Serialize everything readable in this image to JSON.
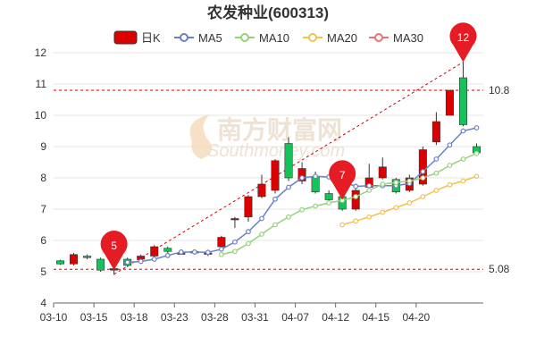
{
  "title": "农发种业(600313)",
  "watermark": "南方财富网 Southmoney.com",
  "chart_data": {
    "type": "candlestick",
    "title": "农发种业(600313)",
    "legend": [
      "日K",
      "MA5",
      "MA10",
      "MA20",
      "MA30"
    ],
    "legend_placement": "top",
    "colors": {
      "up": "#dd0000",
      "down": "#14c35a",
      "MA5": "#6a7fc9",
      "MA10": "#95d27a",
      "MA20": "#f2c14e",
      "MA30": "#f07070",
      "marker": "#e51c23"
    },
    "x_tick_labels": [
      "03-10",
      "03-15",
      "03-18",
      "03-23",
      "03-28",
      "03-31",
      "04-07",
      "04-12",
      "04-15",
      "04-20"
    ],
    "y_range": [
      4,
      12
    ],
    "y_ticks": [
      4,
      5,
      6,
      7,
      8,
      9,
      10,
      11,
      12
    ],
    "candles": [
      {
        "open": 5.35,
        "close": 5.25,
        "high": 5.38,
        "low": 5.22
      },
      {
        "open": 5.25,
        "close": 5.55,
        "high": 5.6,
        "low": 5.2
      },
      {
        "open": 5.5,
        "close": 5.45,
        "high": 5.55,
        "low": 5.4
      },
      {
        "open": 5.4,
        "close": 5.05,
        "high": 5.45,
        "low": 5.0
      },
      {
        "open": 5.05,
        "close": 5.1,
        "high": 5.15,
        "low": 4.9
      },
      {
        "open": 5.4,
        "close": 5.2,
        "high": 5.45,
        "low": 5.15
      },
      {
        "open": 5.4,
        "close": 5.5,
        "high": 5.55,
        "low": 5.35
      },
      {
        "open": 5.5,
        "close": 5.8,
        "high": 5.85,
        "low": 5.45
      },
      {
        "open": 5.75,
        "close": 5.65,
        "high": 5.8,
        "low": 5.6
      },
      {
        "open": 5.6,
        "close": 5.6,
        "high": 5.65,
        "low": 5.55
      },
      {
        "open": 5.65,
        "close": 5.6,
        "high": 5.7,
        "low": 5.55
      },
      {
        "open": 5.6,
        "close": 5.6,
        "high": 5.65,
        "low": 5.5
      },
      {
        "open": 5.8,
        "close": 6.1,
        "high": 6.15,
        "low": 5.75
      },
      {
        "open": 6.7,
        "close": 6.7,
        "high": 6.75,
        "low": 6.4
      },
      {
        "open": 6.75,
        "close": 7.4,
        "high": 7.45,
        "low": 6.6
      },
      {
        "open": 7.4,
        "close": 7.8,
        "high": 8.1,
        "low": 7.35
      },
      {
        "open": 7.6,
        "close": 8.55,
        "high": 8.6,
        "low": 7.5
      },
      {
        "open": 9.1,
        "close": 8.0,
        "high": 9.3,
        "low": 7.9
      },
      {
        "open": 7.9,
        "close": 8.3,
        "high": 8.5,
        "low": 7.8
      },
      {
        "open": 8.05,
        "close": 7.55,
        "high": 8.2,
        "low": 7.5
      },
      {
        "open": 7.5,
        "close": 7.3,
        "high": 7.6,
        "low": 7.2
      },
      {
        "open": 7.4,
        "close": 7.0,
        "high": 7.5,
        "low": 6.95
      },
      {
        "open": 7.0,
        "close": 7.6,
        "high": 7.8,
        "low": 6.95
      },
      {
        "open": 7.7,
        "close": 8.0,
        "high": 8.45,
        "low": 7.6
      },
      {
        "open": 8.0,
        "close": 8.35,
        "high": 8.65,
        "low": 7.95
      },
      {
        "open": 7.95,
        "close": 7.55,
        "high": 8.0,
        "low": 7.5
      },
      {
        "open": 7.6,
        "close": 8.0,
        "high": 8.1,
        "low": 7.55
      },
      {
        "open": 7.8,
        "close": 8.9,
        "high": 9.0,
        "low": 7.75
      },
      {
        "open": 9.15,
        "close": 9.8,
        "high": 10.1,
        "low": 9.05
      },
      {
        "open": 10.0,
        "close": 10.8,
        "high": 10.8,
        "low": 10.0
      },
      {
        "open": 11.2,
        "close": 9.7,
        "high": 11.7,
        "low": 9.65
      },
      {
        "open": 9.0,
        "close": 8.8,
        "high": 9.1,
        "low": 8.7
      }
    ],
    "ma5": [
      null,
      null,
      null,
      null,
      null,
      5.3,
      5.33,
      5.4,
      5.52,
      5.63,
      5.63,
      5.62,
      5.72,
      5.95,
      6.28,
      6.7,
      7.32,
      7.7,
      8.0,
      8.05,
      8.03,
      7.88,
      7.73,
      7.75,
      7.75,
      7.75,
      7.82,
      8.2,
      8.6,
      9.05,
      9.5,
      9.6
    ],
    "ma10": [
      null,
      null,
      null,
      null,
      null,
      null,
      null,
      null,
      null,
      null,
      null,
      null,
      5.55,
      5.65,
      5.9,
      6.2,
      6.5,
      6.75,
      6.98,
      7.1,
      7.2,
      7.28,
      7.4,
      7.6,
      7.8,
      7.85,
      7.9,
      8.0,
      8.15,
      8.4,
      8.6,
      8.78
    ],
    "ma20": [
      null,
      null,
      null,
      null,
      null,
      null,
      null,
      null,
      null,
      null,
      null,
      null,
      null,
      null,
      null,
      null,
      null,
      null,
      null,
      null,
      null,
      6.5,
      6.62,
      6.75,
      6.9,
      7.05,
      7.2,
      7.4,
      7.6,
      7.78,
      7.9,
      8.05
    ],
    "ma30": [],
    "ref_lines": [
      {
        "label": "10.8",
        "value": 10.8
      },
      {
        "label": "5.08",
        "value": 5.08
      }
    ],
    "markers": [
      {
        "label": "5",
        "index": 4,
        "value": 5.05
      },
      {
        "label": "7",
        "index": 21,
        "value": 7.3
      },
      {
        "label": "12",
        "index": 30,
        "value": 11.7
      }
    ],
    "trend_line": {
      "from_index": 4,
      "from_value": 4.92,
      "to_index": 30,
      "to_value": 11.7
    }
  }
}
